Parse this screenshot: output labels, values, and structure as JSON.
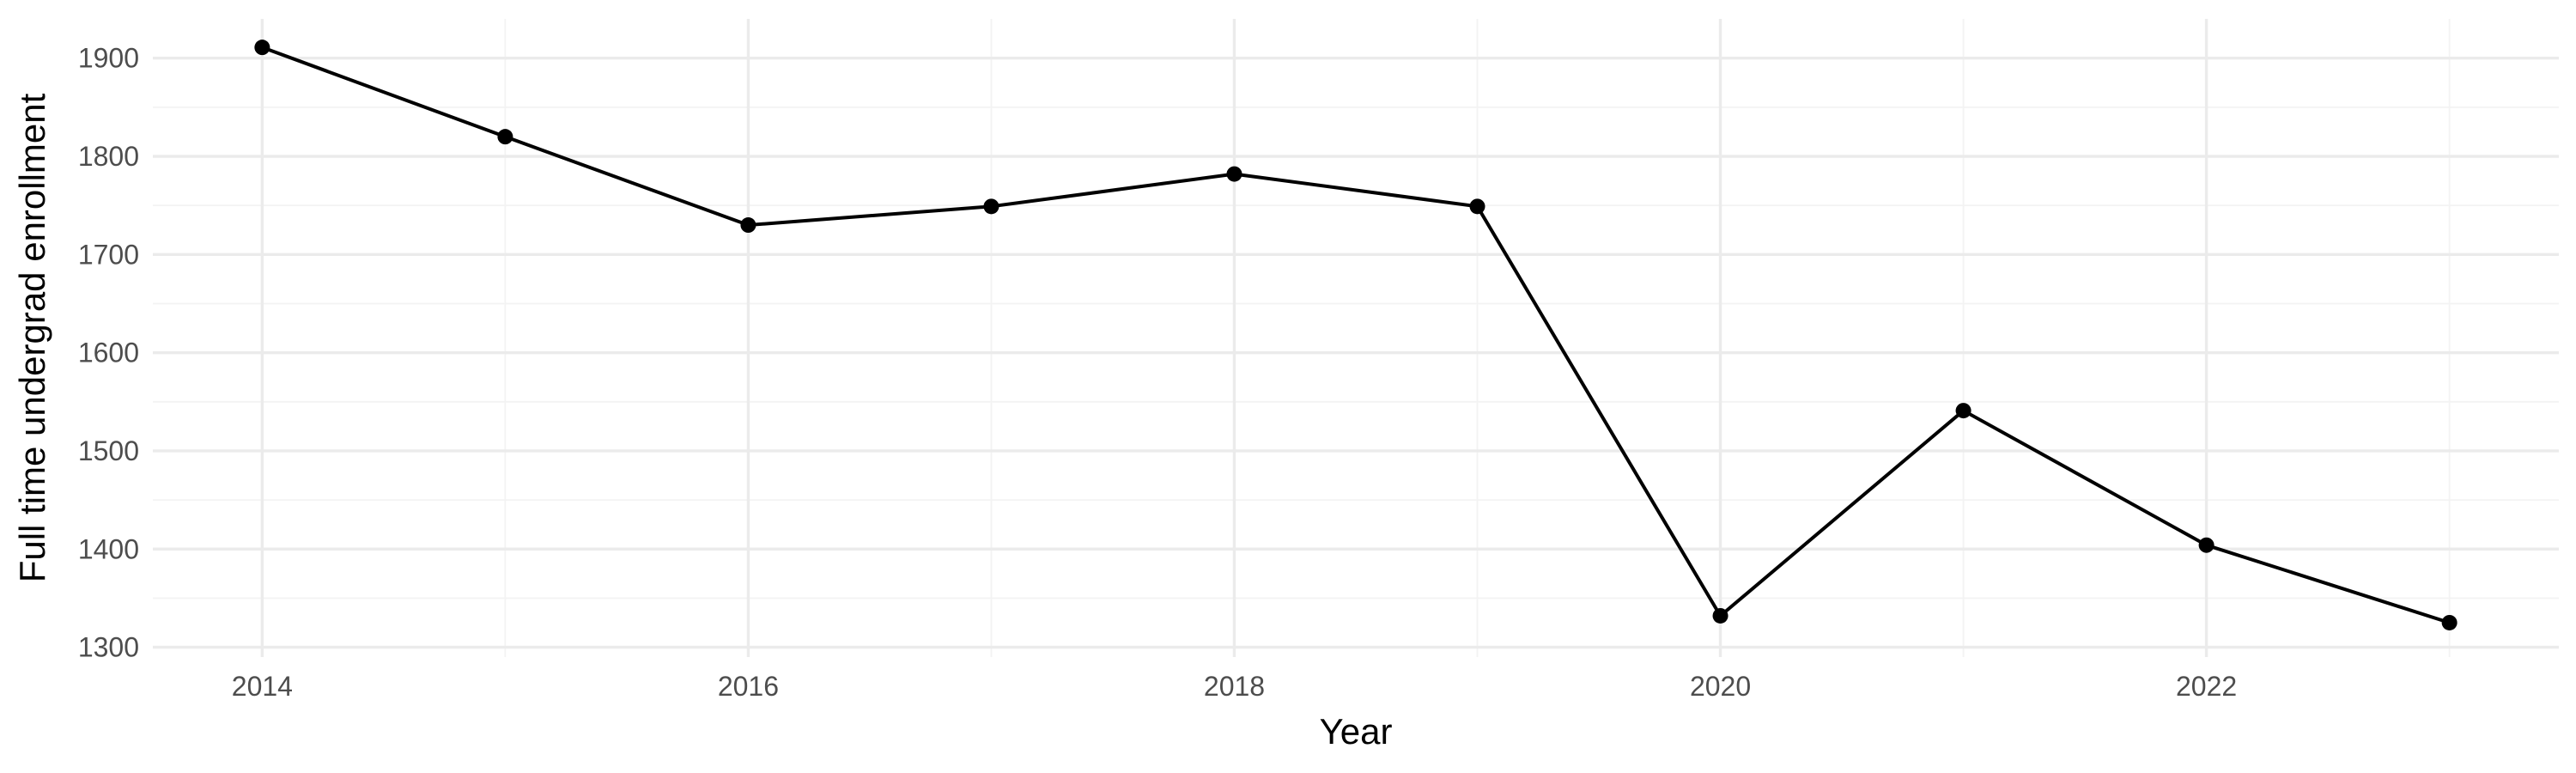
{
  "chart_data": {
    "type": "line",
    "title": "",
    "xlabel": "Year",
    "ylabel": "Full time undergrad enrollment",
    "x": [
      2014,
      2015,
      2016,
      2017,
      2018,
      2019,
      2020,
      2021,
      2022,
      2023
    ],
    "series": [
      {
        "values": [
          1911,
          1820,
          1730,
          1749,
          1782,
          1749,
          1332,
          1541,
          1404,
          1325
        ]
      }
    ],
    "x_ticks": [
      "2014",
      "2016",
      "2018",
      "2020",
      "2022"
    ],
    "y_ticks": [
      "1300",
      "1400",
      "1500",
      "1600",
      "1700",
      "1800",
      "1900"
    ],
    "xlim": [
      2013.55,
      2023.45
    ],
    "ylim": [
      1290,
      1940
    ],
    "grid": true,
    "legend": "none",
    "colors": {
      "line": "#000000",
      "point": "#000000",
      "grid_major": "#ebebeb",
      "grid_minor": "#f3f3f3",
      "tick_text": "#4d4d4d"
    }
  }
}
